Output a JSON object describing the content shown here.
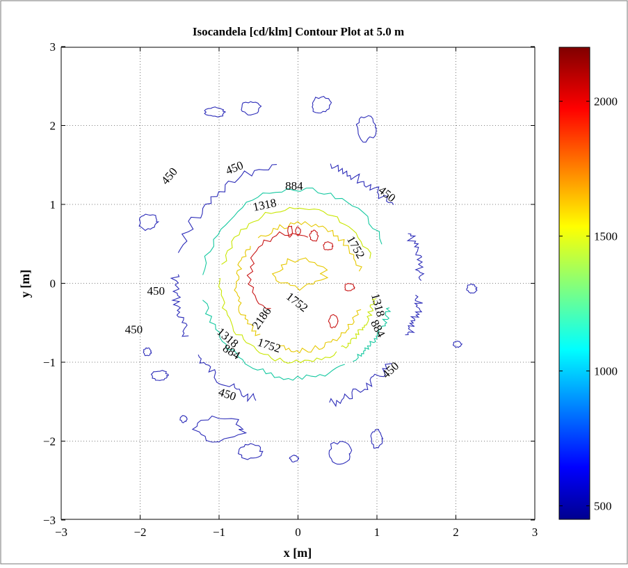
{
  "chart_data": {
    "type": "contour",
    "title": "Isocandela [cd/klm] Contour Plot at 5.0 m",
    "xlabel": "x [m]",
    "ylabel": "y [m]",
    "xlim": [
      -3,
      3
    ],
    "ylim": [
      -3,
      3
    ],
    "xticks": [
      -3,
      -2,
      -1,
      0,
      1,
      2,
      3
    ],
    "yticks": [
      -3,
      -2,
      -1,
      0,
      1,
      2,
      3
    ],
    "xtick_labels": [
      "−3",
      "−2",
      "−1",
      "0",
      "1",
      "2",
      "3"
    ],
    "ytick_labels": [
      "−3",
      "−2",
      "−1",
      "0",
      "1",
      "2",
      "3"
    ],
    "grid": true,
    "levels": [
      450,
      884,
      1318,
      1752,
      2186
    ],
    "colors": {
      "450": "#2b2bb8",
      "884": "#14c8a0",
      "1318": "#c8e600",
      "1752": "#e6c800",
      "2186": "#c81414"
    },
    "colorbar": {
      "min": 450,
      "max": 2200,
      "ticks": [
        500,
        1000,
        1500,
        2000
      ],
      "colormap": "jet"
    },
    "contour_labels": [
      {
        "text": "450",
        "x": -1.62,
        "y": 1.35,
        "angle": -50
      },
      {
        "text": "450",
        "x": -0.8,
        "y": 1.45,
        "angle": -22
      },
      {
        "text": "884",
        "x": -0.05,
        "y": 1.22,
        "angle": 0
      },
      {
        "text": "450",
        "x": 1.12,
        "y": 1.12,
        "angle": 38
      },
      {
        "text": "1318",
        "x": -0.42,
        "y": 0.98,
        "angle": -12
      },
      {
        "text": "1752",
        "x": 0.72,
        "y": 0.45,
        "angle": 60
      },
      {
        "text": "450",
        "x": -1.8,
        "y": -0.11,
        "angle": 0
      },
      {
        "text": "1752",
        "x": -0.02,
        "y": -0.25,
        "angle": 38
      },
      {
        "text": "2186",
        "x": -0.45,
        "y": -0.45,
        "angle": -55
      },
      {
        "text": "1318",
        "x": 1.0,
        "y": -0.28,
        "angle": 75
      },
      {
        "text": "450",
        "x": -2.08,
        "y": -0.6,
        "angle": 0
      },
      {
        "text": "884",
        "x": 1.0,
        "y": -0.58,
        "angle": 62
      },
      {
        "text": "1318",
        "x": -0.9,
        "y": -0.7,
        "angle": 40
      },
      {
        "text": "1752",
        "x": -0.37,
        "y": -0.8,
        "angle": 18
      },
      {
        "text": "884",
        "x": -0.85,
        "y": -0.88,
        "angle": 32
      },
      {
        "text": "450",
        "x": 1.18,
        "y": -1.11,
        "angle": -42
      },
      {
        "text": "450",
        "x": -0.9,
        "y": -1.42,
        "angle": 18
      }
    ]
  }
}
